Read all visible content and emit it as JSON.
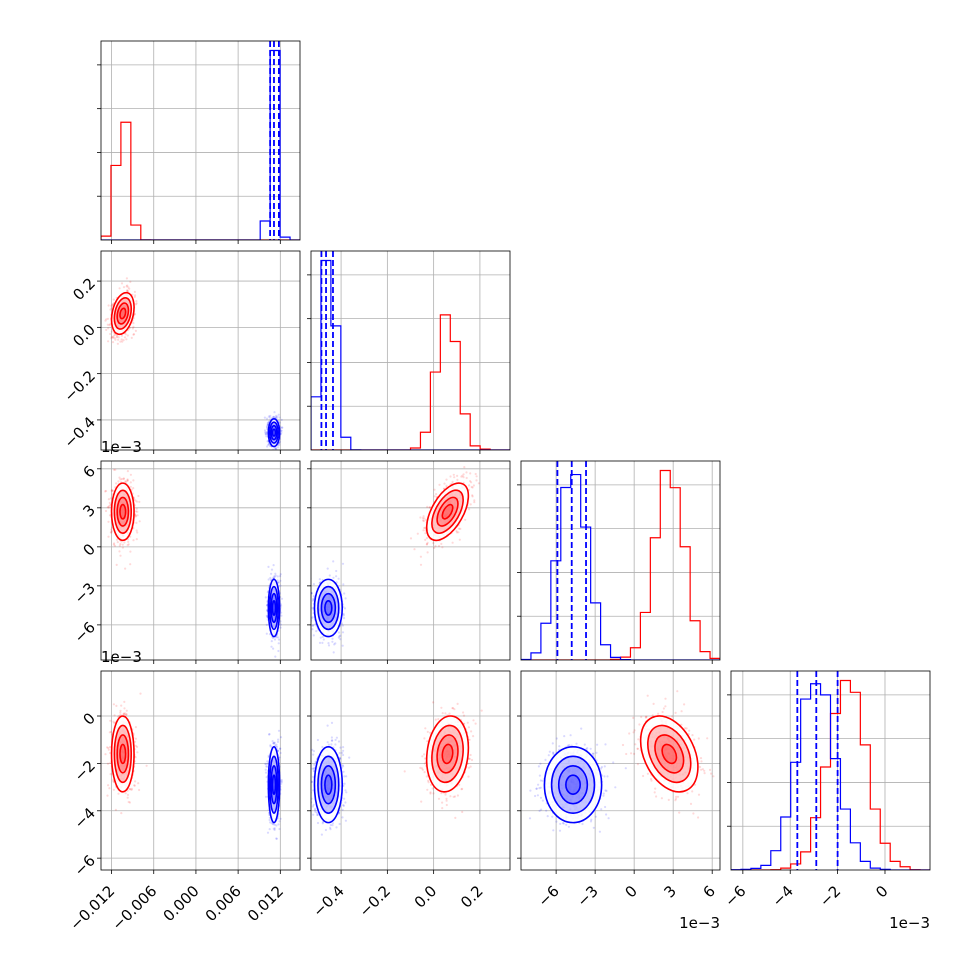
{
  "figure": {
    "offset_labels": {
      "row_2": "1e−3",
      "row_3": "1e−3",
      "col_2": "1e−3",
      "col_3": "1e−3"
    }
  },
  "chart_data": {
    "type": "corner",
    "colors": {
      "red": "#ff0000",
      "blue": "#0000ff"
    },
    "series": [
      {
        "name": "",
        "color": "#ff0000",
        "means": [
          -0.0104,
          0.06,
          0.0027,
          -0.0016
        ],
        "stds": [
          0.0008,
          0.045,
          0.0011,
          0.0008
        ],
        "correlations": [
          [
            0,
            1,
            0.3
          ],
          [
            0,
            2,
            0.0
          ],
          [
            0,
            3,
            0.0
          ],
          [
            1,
            2,
            0.55
          ],
          [
            1,
            3,
            0.15
          ],
          [
            2,
            3,
            -0.35
          ]
        ]
      },
      {
        "name": "",
        "color": "#0000ff",
        "means": [
          0.0111,
          -0.455,
          -0.0047,
          -0.0029
        ],
        "stds": [
          0.0004,
          0.03,
          0.0011,
          0.0008
        ],
        "correlations": [
          [
            0,
            1,
            0.0
          ],
          [
            0,
            2,
            0.0
          ],
          [
            0,
            3,
            0.0
          ],
          [
            1,
            2,
            0.0
          ],
          [
            1,
            3,
            0.0
          ],
          [
            2,
            3,
            0.0
          ]
        ]
      }
    ],
    "parameters": [
      {
        "range": [
          -0.0135,
          0.0148
        ],
        "ticks": [
          -0.012,
          -0.006,
          0.0,
          0.006,
          0.012
        ],
        "tick_labels": [
          "−0.012",
          "−0.006",
          "0.000",
          "0.006",
          "0.012"
        ]
      },
      {
        "range": [
          -0.53,
          0.33
        ],
        "ticks": [
          -0.4,
          -0.2,
          0.0,
          0.2
        ],
        "tick_labels": [
          "−0.4",
          "−0.2",
          "0.0",
          "0.2"
        ]
      },
      {
        "range": [
          -0.0087,
          0.0066
        ],
        "ticks": [
          -0.006,
          -0.003,
          0.0,
          0.003,
          0.006
        ],
        "tick_labels": [
          "−6",
          "−3",
          "0",
          "3",
          "6"
        ]
      },
      {
        "range": [
          -0.0065,
          0.0019
        ],
        "ticks": [
          -0.006,
          -0.004,
          -0.002,
          0.0
        ],
        "tick_labels": [
          "−6",
          "−4",
          "−2",
          "0"
        ]
      }
    ],
    "marginals": [
      {
        "blue_quantiles": [
          0.01055,
          0.0111,
          0.0118
        ],
        "show_diag_yticks": true
      },
      {
        "blue_quantiles": [
          -0.485,
          -0.465,
          -0.435
        ],
        "show_diag_yticks": true
      },
      {
        "blue_quantiles": [
          -0.0059,
          -0.0048,
          -0.0037
        ],
        "show_diag_yticks": true
      },
      {
        "blue_quantiles": [
          -0.0037,
          -0.0029,
          -0.002
        ],
        "show_diag_yticks": true
      }
    ],
    "contour_levels": [
      0.5,
      1.0,
      1.5,
      2.0
    ],
    "grid": true,
    "legend": "none"
  }
}
